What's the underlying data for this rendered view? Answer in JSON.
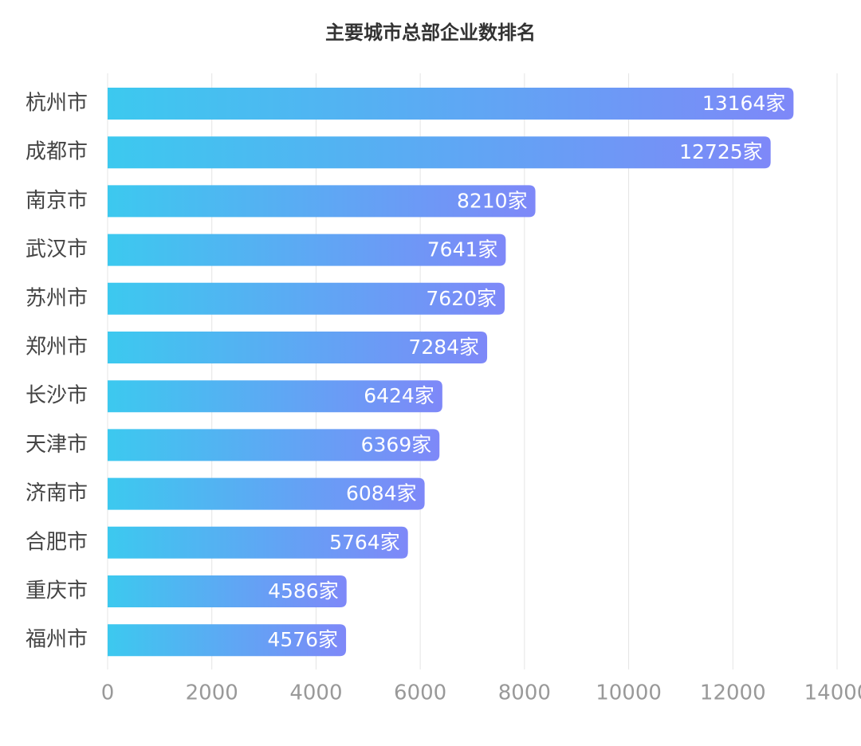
{
  "chart_data": {
    "type": "barh",
    "title": "主要城市总部企业数排名",
    "categories": [
      "杭州市",
      "成都市",
      "南京市",
      "武汉市",
      "苏州市",
      "郑州市",
      "长沙市",
      "天津市",
      "济南市",
      "合肥市",
      "重庆市",
      "福州市"
    ],
    "values": [
      13164,
      12725,
      8210,
      7641,
      7620,
      7284,
      6424,
      6369,
      6084,
      5764,
      4586,
      4576
    ],
    "value_labels": [
      "13164家",
      "12725家",
      "8210家",
      "7641家",
      "7620家",
      "7284家",
      "6424家",
      "6369家",
      "6084家",
      "5764家",
      "4586家",
      "4576家"
    ],
    "gradient": [
      "#3cc9ef",
      "#7e88f8"
    ],
    "xlim": [
      0,
      14000
    ],
    "xticks": [
      0,
      2000,
      4000,
      6000,
      8000,
      10000,
      12000,
      14000
    ],
    "grid": true
  }
}
